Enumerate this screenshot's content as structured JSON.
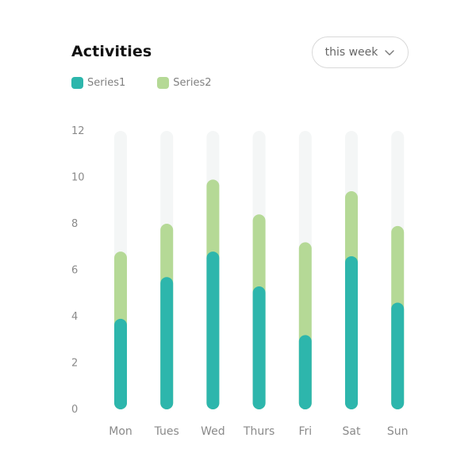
{
  "header": {
    "title": "Activities",
    "period_label": "this week",
    "period_icon": "chevron-down-icon"
  },
  "colors": {
    "series1": "#2db6ac",
    "series2": "#b5d996",
    "track": "#f4f6f6"
  },
  "chart_data": {
    "type": "bar",
    "stacked": true,
    "categories": [
      "Mon",
      "Tues",
      "Wed",
      "Thurs",
      "Fri",
      "Sat",
      "Sun"
    ],
    "series": [
      {
        "name": "Series1",
        "values": [
          3.9,
          5.7,
          6.8,
          5.3,
          3.2,
          6.6,
          4.6
        ]
      },
      {
        "name": "Series2",
        "values": [
          2.9,
          2.3,
          3.1,
          3.1,
          4.0,
          2.8,
          3.3
        ]
      }
    ],
    "yticks": [
      0,
      2,
      4,
      6,
      8,
      10,
      12
    ],
    "ylim": [
      0,
      12
    ],
    "legend": "top-left",
    "grid": false
  }
}
